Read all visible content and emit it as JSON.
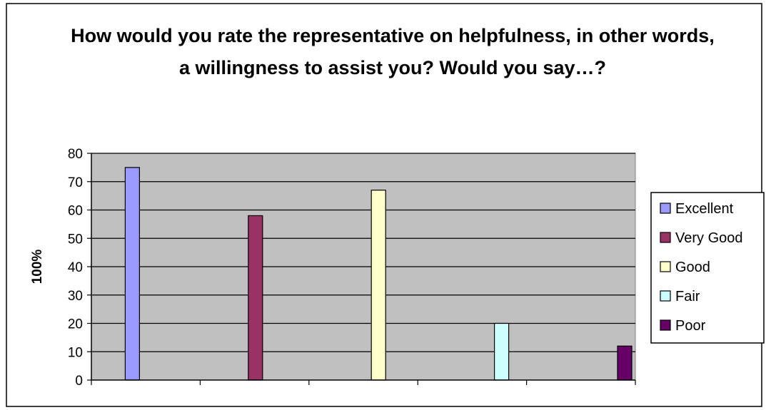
{
  "chart_data": {
    "type": "bar",
    "title": "How would you rate the representative on helpfulness, in other words, a willingness to assist you? Would you say…?",
    "ylabel": "100%",
    "xlabel": "",
    "ylim": [
      0,
      80
    ],
    "yticks": [
      "0",
      "10",
      "20",
      "30",
      "40",
      "50",
      "60",
      "70",
      "80"
    ],
    "grid": true,
    "plot_background": "#c0c0c0",
    "legend_position": "right",
    "series": [
      {
        "name": "Excellent",
        "value": 75,
        "color": "#9999ff",
        "slot": 1
      },
      {
        "name": "Very Good",
        "value": 58,
        "color": "#993366",
        "slot": 2
      },
      {
        "name": "Good",
        "value": 67,
        "color": "#ffffcc",
        "slot": 3
      },
      {
        "name": "Fair",
        "value": 20,
        "color": "#ccffff",
        "slot": 4
      },
      {
        "name": "Poor",
        "value": 12,
        "color": "#660066",
        "slot": 5
      }
    ]
  }
}
